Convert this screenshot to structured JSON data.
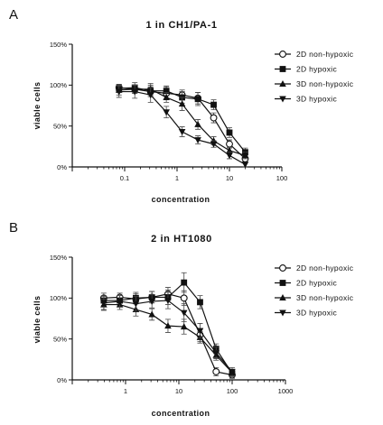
{
  "chart_data": [
    {
      "panel_label": "A",
      "type": "line",
      "title": "1 in CH1/PA-1",
      "xlabel": "concentration",
      "ylabel": "viable cells",
      "x_scale": "log",
      "xlim": [
        0.01,
        100
      ],
      "ylim": [
        0,
        150
      ],
      "x_tick_values": [
        0.1,
        1,
        10,
        100
      ],
      "x_tick_labels": [
        "0.1",
        "1",
        "10",
        "100"
      ],
      "y_tick_values": [
        0,
        50,
        100,
        150
      ],
      "y_tick_labels": [
        "0%",
        "50%",
        "100%",
        "150%"
      ],
      "grid": false,
      "legend_position": "right",
      "series": [
        {
          "name": "2D non-hypoxic",
          "marker": "circle-open",
          "x": [
            0.078,
            0.156,
            0.3125,
            0.625,
            1.25,
            2.5,
            5,
            10,
            20
          ],
          "y": [
            97,
            95,
            92,
            90,
            88,
            84,
            60,
            28,
            10
          ],
          "err": [
            4,
            5,
            6,
            8,
            6,
            7,
            6,
            5,
            4
          ]
        },
        {
          "name": "2D hypoxic",
          "marker": "square-filled",
          "x": [
            0.078,
            0.156,
            0.3125,
            0.625,
            1.25,
            2.5,
            5,
            10,
            20
          ],
          "y": [
            96,
            97,
            93,
            93,
            85,
            83,
            76,
            42,
            18
          ],
          "err": [
            5,
            6,
            7,
            6,
            7,
            8,
            6,
            6,
            5
          ]
        },
        {
          "name": "3D non-hypoxic",
          "marker": "triangle-up-filled",
          "x": [
            0.078,
            0.156,
            0.3125,
            0.625,
            1.25,
            2.5,
            5,
            10,
            20
          ],
          "y": [
            94,
            95,
            95,
            85,
            77,
            52,
            32,
            20,
            14
          ],
          "err": [
            6,
            5,
            7,
            6,
            8,
            6,
            5,
            4,
            4
          ]
        },
        {
          "name": "3D hypoxic",
          "marker": "triangle-down-filled",
          "x": [
            0.078,
            0.156,
            0.3125,
            0.625,
            1.25,
            2.5,
            5,
            10,
            20
          ],
          "y": [
            92,
            92,
            88,
            67,
            43,
            33,
            28,
            14,
            3
          ],
          "err": [
            7,
            8,
            9,
            7,
            6,
            5,
            4,
            4,
            3
          ]
        }
      ]
    },
    {
      "panel_label": "B",
      "type": "line",
      "title": "2 in HT1080",
      "xlabel": "concentration",
      "ylabel": "viable cells",
      "x_scale": "log",
      "xlim": [
        0.1,
        1000
      ],
      "ylim": [
        0,
        150
      ],
      "x_tick_values": [
        1,
        10,
        100,
        1000
      ],
      "x_tick_labels": [
        "1",
        "10",
        "100",
        "1000"
      ],
      "y_tick_values": [
        0,
        50,
        100,
        150
      ],
      "y_tick_labels": [
        "0%",
        "50%",
        "100%",
        "150%"
      ],
      "grid": false,
      "legend_position": "right",
      "series": [
        {
          "name": "2D non-hypoxic",
          "marker": "circle-open",
          "x": [
            0.39,
            0.78,
            1.56,
            3.125,
            6.25,
            12.5,
            25,
            50,
            100
          ],
          "y": [
            100,
            101,
            99,
            101,
            105,
            100,
            55,
            10,
            6
          ],
          "err": [
            6,
            5,
            6,
            7,
            8,
            9,
            8,
            5,
            4
          ]
        },
        {
          "name": "2D hypoxic",
          "marker": "square-filled",
          "x": [
            0.39,
            0.78,
            1.56,
            3.125,
            6.25,
            12.5,
            25,
            50,
            100
          ],
          "y": [
            97,
            97,
            100,
            101,
            101,
            119,
            95,
            38,
            8
          ],
          "err": [
            6,
            6,
            7,
            7,
            9,
            12,
            8,
            6,
            4
          ]
        },
        {
          "name": "3D non-hypoxic",
          "marker": "triangle-up-filled",
          "x": [
            0.39,
            0.78,
            1.56,
            3.125,
            6.25,
            12.5,
            25,
            50,
            100
          ],
          "y": [
            92,
            92,
            86,
            80,
            66,
            65,
            52,
            30,
            9
          ],
          "err": [
            7,
            6,
            8,
            7,
            8,
            9,
            7,
            6,
            4
          ]
        },
        {
          "name": "3D hypoxic",
          "marker": "triangle-down-filled",
          "x": [
            0.39,
            0.78,
            1.56,
            3.125,
            6.25,
            12.5,
            25,
            50,
            100
          ],
          "y": [
            94,
            96,
            93,
            96,
            97,
            82,
            60,
            33,
            10
          ],
          "err": [
            8,
            7,
            9,
            8,
            10,
            11,
            9,
            7,
            5
          ]
        }
      ]
    }
  ]
}
